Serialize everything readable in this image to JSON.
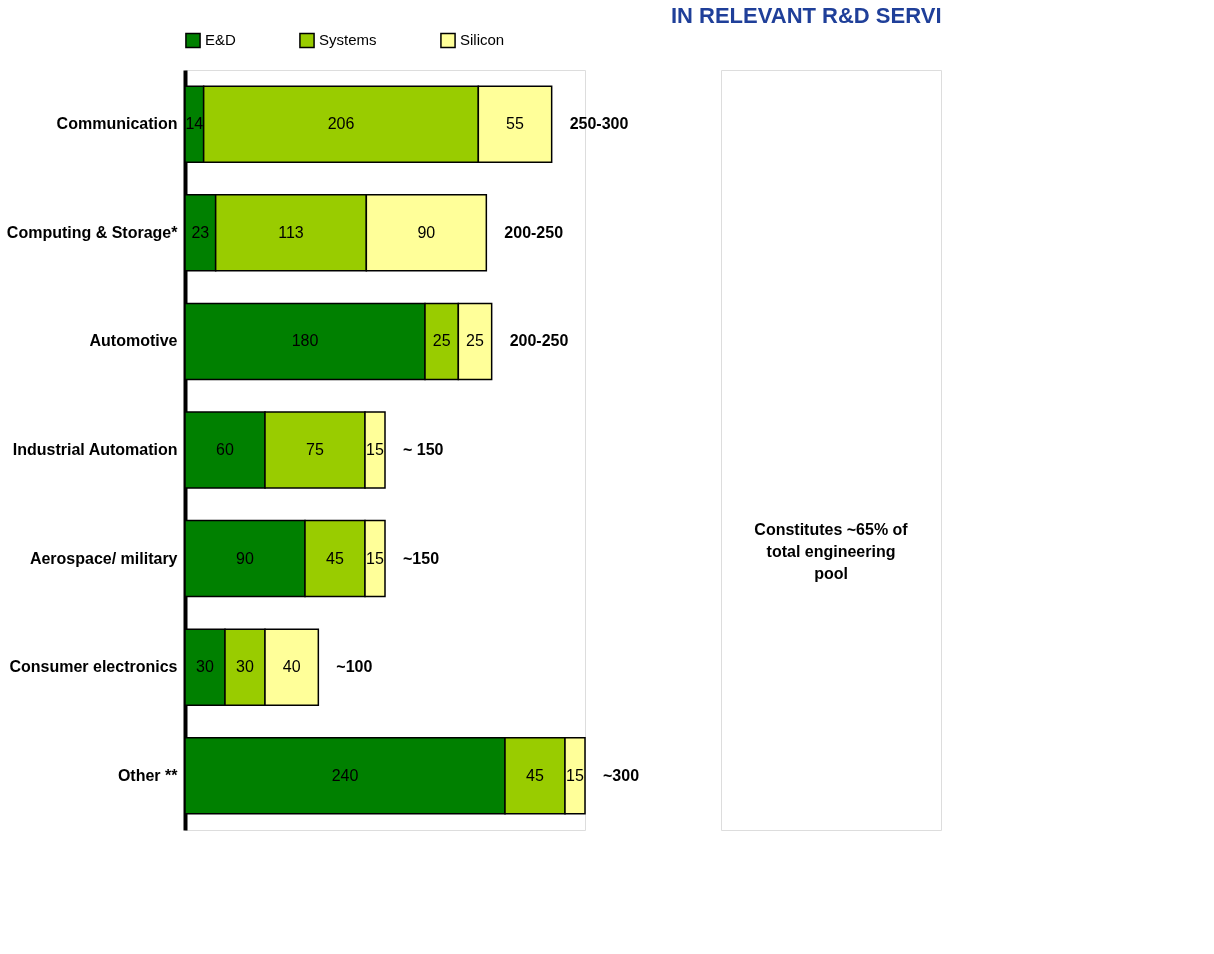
{
  "chart_data": {
    "type": "bar",
    "orientation": "horizontal",
    "stacked": true,
    "title": "IN RELEVANT R&D SERVI",
    "categories": [
      "Communication",
      "Computing & Storage*",
      "Automotive",
      "Industrial Automation",
      "Aerospace/ military",
      "Consumer electronics",
      "Other **"
    ],
    "series": [
      {
        "name": "E&D",
        "color": "#008000",
        "values": [
          14,
          23,
          180,
          60,
          90,
          30,
          240
        ]
      },
      {
        "name": "Systems",
        "color": "#99cc00",
        "values": [
          206,
          113,
          25,
          75,
          45,
          30,
          45
        ]
      },
      {
        "name": "Silicon",
        "color": "#ffff99",
        "values": [
          55,
          90,
          25,
          15,
          15,
          40,
          15
        ]
      }
    ],
    "data_labels": true,
    "totals": [
      "250-300",
      "200-250",
      "200-250",
      "~ 150",
      "~150",
      "~100",
      "~300"
    ],
    "legend": "top",
    "grid": false,
    "annotations": [
      "Constitutes ~65% of total engineering pool"
    ]
  }
}
